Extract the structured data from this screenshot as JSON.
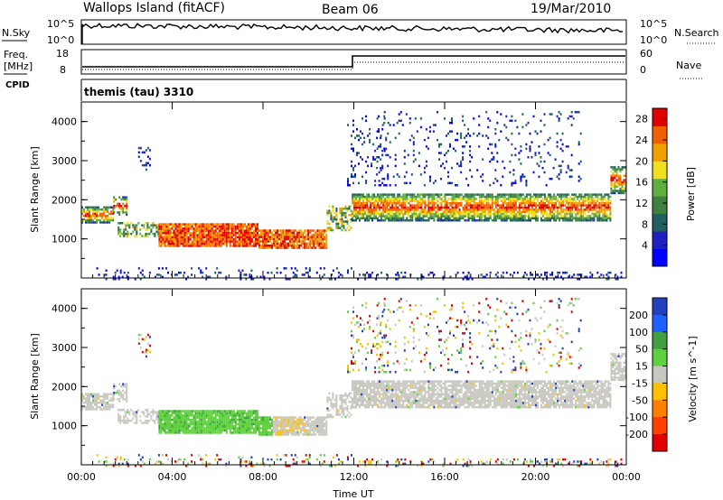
{
  "header": {
    "station": "Wallops Island (fitACF)",
    "beam": "Beam 06",
    "date": "19/Mar/2010"
  },
  "noise_panel": {
    "left_label": "N.Sky",
    "left_ticks": [
      "10^5",
      "10^0"
    ],
    "right_label": "N.Search",
    "right_ticks": [
      "10^5",
      "10^0"
    ]
  },
  "freq_panel": {
    "left_label_1": "Freq.",
    "left_label_2": "[MHz]",
    "left_ticks": [
      "18",
      "8"
    ],
    "right_label": "Nave",
    "right_ticks": [
      "60",
      "0"
    ]
  },
  "cpid_panel": {
    "label": "CPID",
    "value": "themis (tau) 3310"
  },
  "colors": {
    "scatter_gray": "#c8c8c0",
    "power_scale": [
      "#0000ff",
      "#2020c0",
      "#206060",
      "#408040",
      "#60b040",
      "#f0e020",
      "#f0a000",
      "#f06000",
      "#e00000"
    ],
    "velocity_scale": [
      "#2040c0",
      "#2060ff",
      "#40a040",
      "#60d040",
      "#c8c8c0",
      "#ffc000",
      "#ff8000",
      "#ff4000",
      "#e00000"
    ]
  },
  "chart_data": [
    {
      "type": "heatmap",
      "title": "Power",
      "ylabel": "Slant Range [km]",
      "xlabel": "",
      "x_ticks": [
        "00:00",
        "04:00",
        "08:00",
        "12:00",
        "16:00",
        "20:00",
        "00:00"
      ],
      "y_ticks": [
        "1000",
        "2000",
        "3000",
        "4000"
      ],
      "ylim": [
        0,
        4500
      ],
      "xlim_hours": [
        0,
        24
      ],
      "colorbar_label": "Power [dB]",
      "colorbar_ticks": [
        "4",
        "8",
        "12",
        "16",
        "20",
        "24",
        "28"
      ],
      "colorbar_range": [
        0,
        30
      ]
    },
    {
      "type": "heatmap",
      "title": "Velocity",
      "ylabel": "Slant Range [km]",
      "xlabel": "Time UT",
      "x_ticks": [
        "00:00",
        "04:00",
        "08:00",
        "12:00",
        "16:00",
        "20:00",
        "00:00"
      ],
      "y_ticks": [
        "1000",
        "2000",
        "3000",
        "4000"
      ],
      "ylim": [
        0,
        4500
      ],
      "xlim_hours": [
        0,
        24
      ],
      "colorbar_label": "Velocity [m s^-1]",
      "colorbar_ticks": [
        "200",
        "100",
        "50",
        "15",
        "-15",
        "-50",
        "-100",
        "-200"
      ]
    }
  ]
}
